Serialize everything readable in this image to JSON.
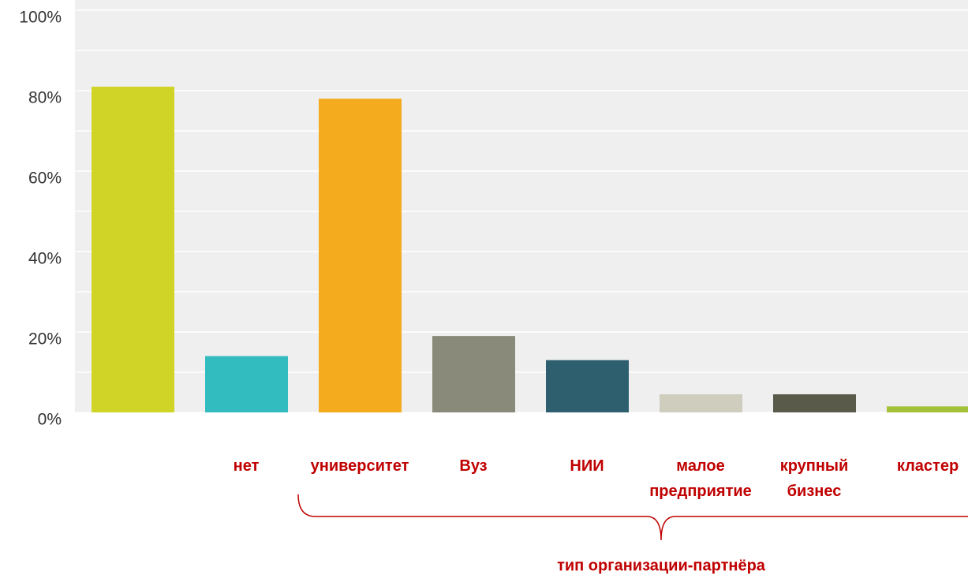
{
  "chart_data": {
    "type": "bar",
    "x_label": "тип организации-партнёра",
    "categories": [
      null,
      "нет",
      "университет",
      "Вуз",
      "НИИ",
      "малое предприятие",
      "крупный бизнес",
      "кластер"
    ],
    "values": [
      81,
      14,
      78,
      19,
      13,
      4.5,
      4.5,
      1.5
    ],
    "colors": [
      "#cfd426",
      "#33bcbf",
      "#f5ab1e",
      "#8a8a7a",
      "#2e5f6e",
      "#cfcdbd",
      "#5a5a4a",
      "#a4c13a"
    ],
    "ylim": [
      0,
      100
    ],
    "yticks": [
      {
        "value": 0,
        "label": "0%"
      },
      {
        "value": 20,
        "label": "20%"
      },
      {
        "value": 40,
        "label": "40%"
      },
      {
        "value": 60,
        "label": "60%"
      },
      {
        "value": 80,
        "label": "80%"
      },
      {
        "value": 100,
        "label": "100%"
      }
    ],
    "minor_yticks": [
      10,
      30,
      50,
      70,
      90
    ],
    "grid": true
  }
}
